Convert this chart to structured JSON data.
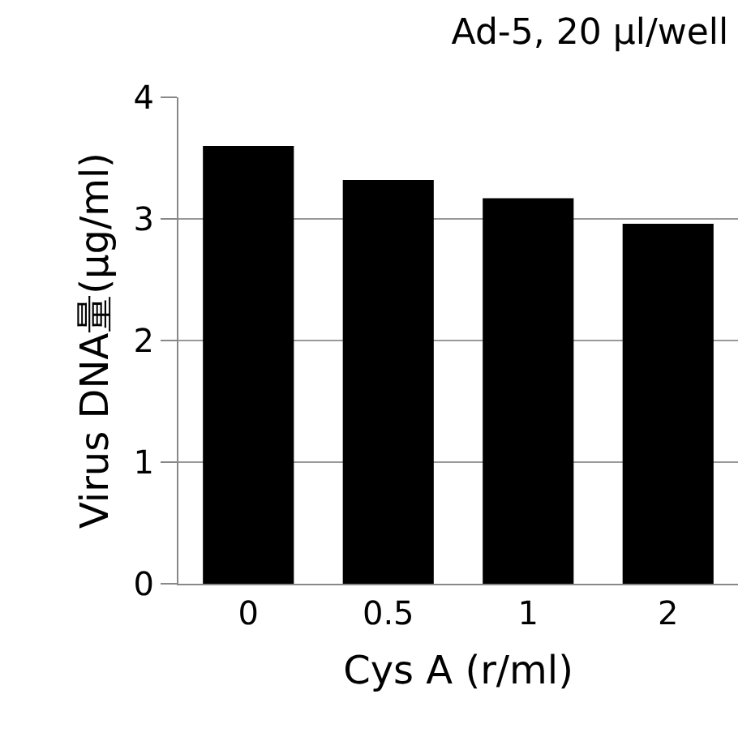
{
  "chart_data": {
    "type": "bar",
    "title": "Ad-5, 20 μl/well",
    "xlabel": "Cys A (r/ml)",
    "ylabel": "Virus DNA量(μg/ml)",
    "categories": [
      "0",
      "0.5",
      "1",
      "2"
    ],
    "values": [
      3.6,
      3.32,
      3.17,
      2.96
    ],
    "color": "#000000",
    "ylim": [
      0,
      4
    ],
    "yticks": [
      0,
      1,
      2,
      3,
      4
    ],
    "grid": "y"
  }
}
